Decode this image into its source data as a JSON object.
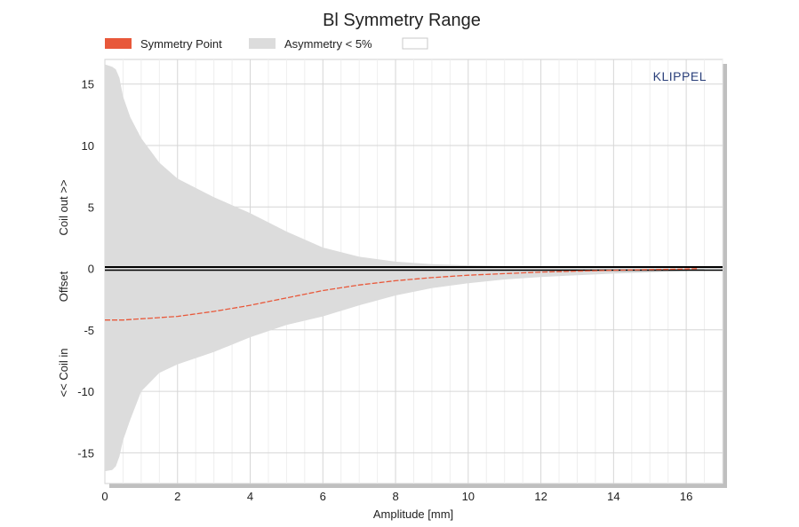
{
  "chart_data": {
    "type": "area",
    "title": "Bl Symmetry Range",
    "xlabel": "Amplitude [mm]",
    "ylabel_parts": [
      "<< Coil in",
      "Offset",
      "Coil out >>"
    ],
    "brand": "KLIPPEL",
    "xlim": [
      0,
      17
    ],
    "ylim": [
      -17.5,
      17
    ],
    "xticks": [
      0,
      2,
      4,
      6,
      8,
      10,
      12,
      14,
      16
    ],
    "yticks": [
      -15,
      -10,
      -5,
      0,
      5,
      10,
      15
    ],
    "grid": true,
    "legend_position": "top",
    "legend": [
      {
        "label": "Symmetry Point",
        "color": "#e8583a",
        "kind": "line"
      },
      {
        "label": "Asymmetry < 5%",
        "color": "#dcdcdc",
        "kind": "area"
      },
      {
        "label": "",
        "color": "#ffffff",
        "kind": "box"
      }
    ],
    "series": [
      {
        "name": "Asymmetry < 5%",
        "kind": "band",
        "color": "#dcdcdc",
        "x": [
          0,
          0.2,
          0.3,
          0.4,
          0.5,
          0.7,
          1.0,
          1.5,
          2.0,
          3.0,
          4.0,
          5.0,
          6.0,
          7.0,
          8.0,
          9.0,
          10.0,
          11.0,
          12.0,
          13.0,
          14.0,
          15.0,
          16.0,
          16.5
        ],
        "upper": [
          16.6,
          16.4,
          16.2,
          15.5,
          14.0,
          12.3,
          10.6,
          8.6,
          7.3,
          5.8,
          4.5,
          3.0,
          1.7,
          0.95,
          0.55,
          0.35,
          0.25,
          0.2,
          0.15,
          0.12,
          0.1,
          0.08,
          0.05,
          0.02
        ],
        "lower": [
          -16.5,
          -16.4,
          -16.1,
          -15.3,
          -14.0,
          -12.3,
          -10.0,
          -8.5,
          -7.8,
          -6.8,
          -5.6,
          -4.6,
          -3.9,
          -3.0,
          -2.2,
          -1.6,
          -1.2,
          -0.9,
          -0.7,
          -0.55,
          -0.42,
          -0.32,
          -0.2,
          -0.1
        ]
      },
      {
        "name": "Symmetry Point",
        "kind": "line",
        "color": "#e8583a",
        "x": [
          0,
          0.5,
          1.0,
          1.5,
          2.0,
          2.5,
          3.0,
          3.5,
          4.0,
          4.5,
          5.0,
          6.0,
          7.0,
          8.0,
          9.0,
          10.0,
          11.0,
          12.0,
          13.0,
          14.0,
          15.0,
          16.0,
          16.3
        ],
        "y": [
          -4.2,
          -4.2,
          -4.1,
          -4.0,
          -3.9,
          -3.7,
          -3.5,
          -3.25,
          -3.0,
          -2.7,
          -2.4,
          -1.8,
          -1.35,
          -1.0,
          -0.75,
          -0.55,
          -0.42,
          -0.3,
          -0.22,
          -0.15,
          -0.1,
          -0.05,
          -0.02
        ]
      }
    ],
    "reference_line_y": 0
  }
}
